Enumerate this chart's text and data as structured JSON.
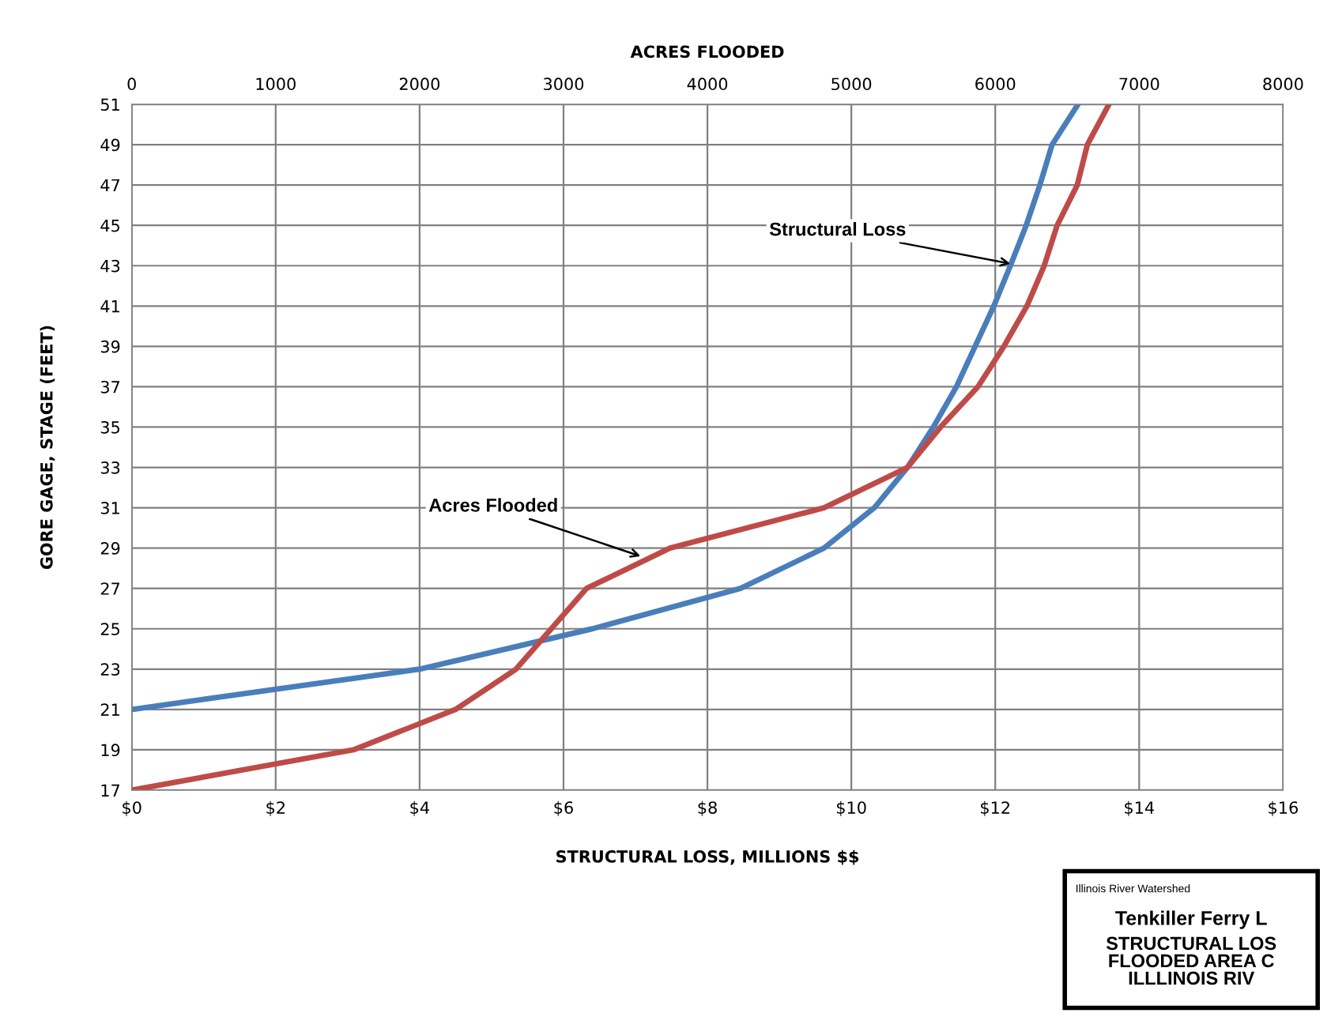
{
  "chart_data": {
    "type": "line",
    "x2label": "ACRES FLOODED",
    "xlabel": "STRUCTURAL LOSS, MILLIONS $$",
    "ylabel": "GORE GAGE, STAGE (FEET)",
    "series": [
      {
        "color": "#4a7ebb",
        "x": [
          0,
          4.0,
          6.4,
          8.46,
          9.62,
          10.32,
          10.78,
          11.14,
          11.46,
          11.72,
          11.98,
          12.21,
          12.43,
          12.62,
          12.79,
          13.15
        ],
        "values": [
          21,
          23,
          25,
          27,
          29,
          31,
          33,
          35,
          37,
          39,
          41,
          43,
          45,
          47,
          49,
          51
        ]
      },
      {
        "color": "#be4b48",
        "axis": "x2",
        "x": [
          0,
          1540,
          2250,
          2670,
          3160,
          3740,
          4810,
          5390,
          5620,
          5880,
          6060,
          6220,
          6340,
          6430,
          6570,
          6640,
          6790
        ],
        "values": [
          17,
          19,
          21,
          23,
          27,
          29,
          31,
          33,
          35,
          37,
          39,
          41,
          43,
          45,
          47,
          49,
          51
        ]
      }
    ],
    "xlim": [
      0,
      16
    ],
    "xticks": [
      {
        "value": 0,
        "label": "$0"
      },
      {
        "value": 2,
        "label": "$2"
      },
      {
        "value": 4,
        "label": "$4"
      },
      {
        "value": 6,
        "label": "$6"
      },
      {
        "value": 8,
        "label": "$8"
      },
      {
        "value": 10,
        "label": "$10"
      },
      {
        "value": 12,
        "label": "$12"
      },
      {
        "value": 14,
        "label": "$14"
      },
      {
        "value": 16,
        "label": "$16"
      }
    ],
    "x2lim": [
      0,
      8000
    ],
    "x2ticks": [
      0,
      1000,
      2000,
      3000,
      4000,
      5000,
      6000,
      7000,
      8000
    ],
    "ylim": [
      17,
      51
    ],
    "yticks": [
      17,
      19,
      21,
      23,
      25,
      27,
      29,
      31,
      33,
      35,
      37,
      39,
      41,
      43,
      45,
      47,
      49,
      51
    ],
    "grid": true,
    "annotations": [
      {
        "text": "Acres Flooded",
        "x": 7.07,
        "y": 28.6
      },
      {
        "text": "Structural Loss",
        "x": 12.21,
        "y": 43.1
      },
      "Illinois River Watershed",
      "Tenkiller Ferry L",
      "STRUCTURAL LOS\nFLOODED AREA C\nILLLINOIS RIV"
    ]
  }
}
